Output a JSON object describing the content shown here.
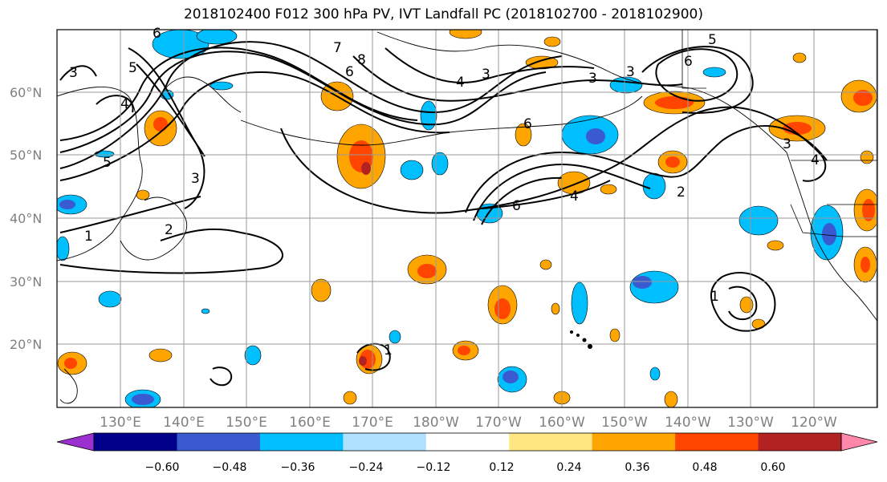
{
  "title": "2018102400 F012 300 hPa PV, IVT Landfall PC (2018102700 - 2018102900)",
  "lat_labels": [
    "60°N",
    "50°N",
    "40°N",
    "30°N",
    "20°N"
  ],
  "lon_labels": [
    "130°E",
    "140°E",
    "150°E",
    "160°E",
    "170°E",
    "180°W",
    "170°W",
    "160°W",
    "150°W",
    "140°W",
    "130°W",
    "120°W"
  ],
  "colorbar": {
    "ticks": [
      "−0.60",
      "−0.48",
      "−0.36",
      "−0.24",
      "−0.12",
      "0.12",
      "0.24",
      "0.36",
      "0.48",
      "0.60"
    ],
    "colors": [
      "#9b30d0",
      "#00008b",
      "#3a5bd0",
      "#00bfff",
      "#b0e0ff",
      "#ffffff",
      "#ffe680",
      "#ffa500",
      "#ff4500",
      "#b22222",
      "#ff88aa"
    ]
  },
  "contour_labels": [
    "6",
    "5",
    "4",
    "3",
    "5",
    "6",
    "8",
    "7",
    "3",
    "3",
    "3",
    "6",
    "4",
    "5",
    "6",
    "6",
    "4",
    "2",
    "3",
    "4",
    "1",
    "2",
    "3",
    "1",
    "1"
  ],
  "palette": {
    "neg_light": "#b0e0ff",
    "neg": "#00bfff",
    "neg_dark": "#3a5bd0",
    "pos_light": "#ffe680",
    "pos": "#ffa500",
    "pos_dark": "#ff4500"
  }
}
